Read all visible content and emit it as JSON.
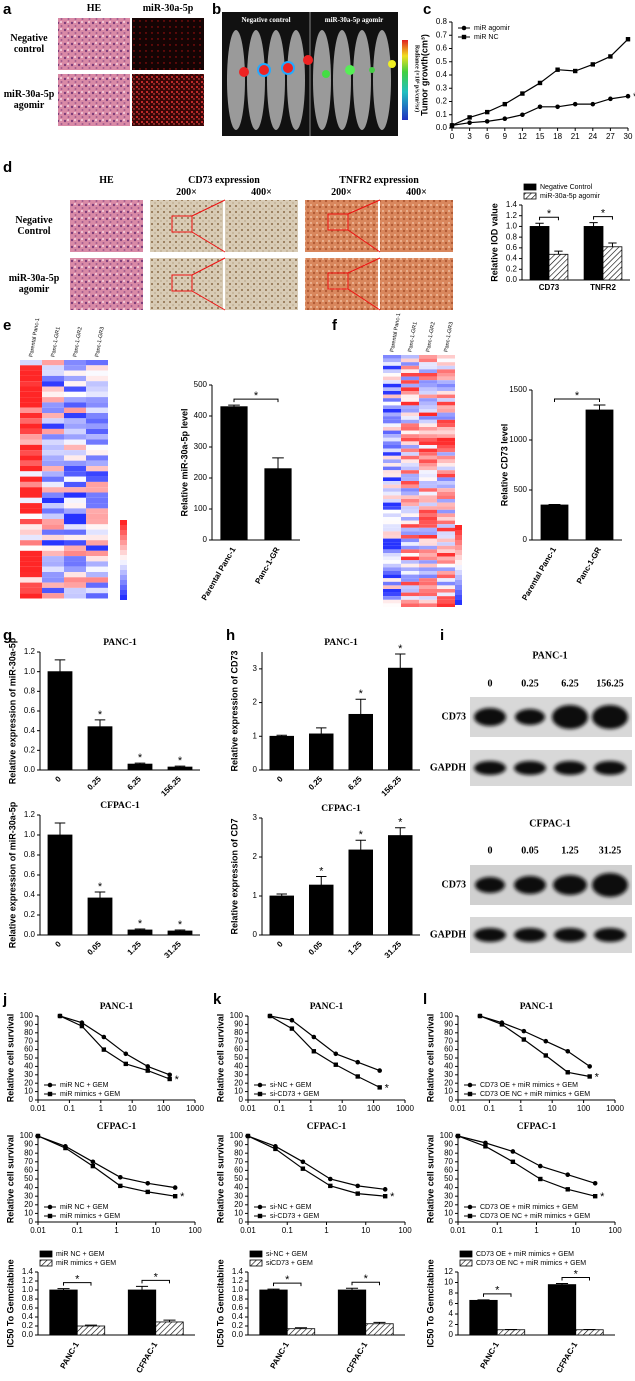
{
  "figure": {
    "panels": [
      "a",
      "b",
      "c",
      "d",
      "e",
      "f",
      "g",
      "h",
      "i",
      "j",
      "k",
      "l"
    ],
    "a": {
      "columns": [
        "HE",
        "miR-30a-5p"
      ],
      "rows": [
        "Negative control",
        "miR-30a-5p agomir"
      ]
    },
    "b": {
      "columns": [
        "Negative control",
        "miR-30a-5p agomir"
      ],
      "colorbar": "Radiance (×10⁶ p/s/cm²/sr)"
    },
    "d": {
      "columns": [
        "HE",
        "CD73 expression",
        "TNFR2 expression"
      ],
      "magnifications": [
        "200×",
        "400×",
        "200×",
        "400×"
      ],
      "rows": [
        "Negative Control",
        "miR-30a-5p agomir"
      ]
    },
    "e": {
      "columns": [
        "Parental Panc-1",
        "Panc-1-GR1",
        "Panc-1-GR2",
        "Panc-1-GR3"
      ]
    },
    "f": {
      "columns": [
        "Parental Panc-1",
        "Panc-1-GR1",
        "Panc-1-GR2",
        "Panc-1-GR3"
      ]
    },
    "i": {
      "blots": [
        {
          "title": "PANC-1",
          "doses": [
            "0",
            "0.25",
            "6.25",
            "156.25"
          ],
          "proteins": [
            "CD73",
            "GAPDH"
          ]
        },
        {
          "title": "CFPAC-1",
          "doses": [
            "0",
            "0.05",
            "1.25",
            "31.25"
          ],
          "proteins": [
            "CD73",
            "GAPDH"
          ]
        }
      ]
    }
  },
  "chart_data": [
    {
      "type": "line",
      "ylabel": "Tumor growth(cm³)",
      "x": [
        0,
        3,
        6,
        9,
        12,
        15,
        18,
        21,
        24,
        27,
        30
      ],
      "xlim": [
        0,
        30
      ],
      "xticks": [
        0,
        3,
        6,
        9,
        12,
        15,
        18,
        21,
        24,
        27,
        30
      ],
      "ylim": [
        0,
        0.8
      ],
      "yticks": [
        {
          "value": 0,
          "label": "0.0"
        },
        0.1,
        0.2,
        0.3,
        0.4,
        0.5,
        0.6,
        0.7,
        0.8
      ],
      "legend": "upper left",
      "significance": "*",
      "series": [
        {
          "name": "miR agomir",
          "color": "#000000",
          "marker": "circle",
          "values": [
            0.02,
            0.04,
            0.05,
            0.07,
            0.1,
            0.16,
            0.16,
            0.18,
            0.18,
            0.22,
            0.24
          ]
        },
        {
          "name": "miR NC",
          "color": "#000000",
          "marker": "square",
          "values": [
            0.02,
            0.08,
            0.12,
            0.18,
            0.26,
            0.34,
            0.44,
            0.43,
            0.48,
            0.54,
            0.67
          ]
        }
      ]
    },
    {
      "type": "bar",
      "ylabel": "Relative IOD value",
      "categories": [
        "CD73",
        "TNFR2"
      ],
      "ylim": [
        0,
        1.4
      ],
      "yticks": [
        {
          "value": 0,
          "label": "0.0"
        },
        0.2,
        0.4,
        0.6,
        0.8,
        {
          "value": 1,
          "label": "1.0"
        },
        1.2,
        1.4
      ],
      "legend": "top",
      "significance": [
        "*",
        "*"
      ],
      "series": [
        {
          "name": "Negative Control",
          "color": "#000000",
          "values": [
            1,
            1
          ],
          "errors": [
            0.06,
            0.07
          ]
        },
        {
          "name": "miR-30a-5p agomir",
          "color": "#000000",
          "fill": "hatch",
          "values": [
            0.48,
            0.62
          ],
          "errors": [
            0.06,
            0.07
          ]
        }
      ]
    },
    {
      "type": "bar",
      "ylabel": "Relative miR-30a-5p level",
      "categories": [
        "Parental Panc-1",
        "Panc-1-GR"
      ],
      "values": [
        430,
        230
      ],
      "errors": [
        5,
        35
      ],
      "color": "#000000",
      "ylim": [
        0,
        500
      ],
      "yticks": [
        0,
        100,
        200,
        300,
        400,
        500
      ],
      "significance": "*"
    },
    {
      "type": "bar",
      "ylabel": "Relative CD73 level",
      "categories": [
        "Parental Panc-1",
        "Panc-1-GR"
      ],
      "values": [
        350,
        1300
      ],
      "errors": [
        5,
        50
      ],
      "color": "#000000",
      "ylim": [
        0,
        1500
      ],
      "yticks": [
        0,
        500,
        1000,
        1500
      ],
      "significance": "*"
    },
    {
      "type": "bar",
      "title": "PANC-1",
      "ylabel": "Relative expression of miR-30a-5p",
      "categories": [
        "0",
        "0.25",
        "6.25",
        "156.25"
      ],
      "values": [
        1,
        0.44,
        0.06,
        0.03
      ],
      "errors": [
        0.12,
        0.07,
        0.01,
        0.01
      ],
      "color": "#000000",
      "ylim": [
        0,
        1.2
      ],
      "yticks": [
        {
          "value": 0,
          "label": "0.0"
        },
        0.2,
        0.4,
        0.6,
        0.8,
        {
          "value": 1,
          "label": "1.0"
        },
        1.2
      ],
      "significance": [
        null,
        "*",
        "*",
        "*"
      ]
    },
    {
      "type": "bar",
      "title": "CFPAC-1",
      "ylabel": "Relative expression of miR-30a-5p",
      "categories": [
        "0",
        "0.05",
        "1.25",
        "31.25"
      ],
      "values": [
        1,
        0.37,
        0.05,
        0.04
      ],
      "errors": [
        0.12,
        0.06,
        0.01,
        0.01
      ],
      "color": "#000000",
      "ylim": [
        0,
        1.2
      ],
      "yticks": [
        {
          "value": 0,
          "label": "0.0"
        },
        0.2,
        0.4,
        0.6,
        0.8,
        {
          "value": 1,
          "label": "1.0"
        },
        1.2
      ],
      "significance": [
        null,
        "*",
        "*",
        "*"
      ]
    },
    {
      "type": "bar",
      "title": "PANC-1",
      "ylabel": "Relative expression of CD73",
      "categories": [
        "0",
        "0.25",
        "6.25",
        "156.25"
      ],
      "values": [
        1,
        1.07,
        1.65,
        3.02
      ],
      "errors": [
        0.03,
        0.18,
        0.45,
        0.42
      ],
      "color": "#000000",
      "ylim": [
        0,
        3.5
      ],
      "yticks": [
        0,
        1,
        2,
        3
      ],
      "significance": [
        null,
        null,
        "*",
        "*"
      ]
    },
    {
      "type": "bar",
      "title": "CFPAC-1",
      "ylabel": "Relative expression of CD7",
      "categories": [
        "0",
        "0.05",
        "1.25",
        "31.25"
      ],
      "values": [
        1,
        1.28,
        2.18,
        2.55
      ],
      "errors": [
        0.05,
        0.22,
        0.25,
        0.2
      ],
      "color": "#000000",
      "ylim": [
        0,
        3
      ],
      "yticks": [
        0,
        1,
        2,
        3
      ],
      "significance": [
        null,
        "*",
        "*",
        "*"
      ]
    },
    {
      "type": "line",
      "title": "PANC-1",
      "ylabel": "Relative cell survival",
      "x": [
        0.05,
        0.25,
        1.25,
        6.25,
        31.25,
        156.25
      ],
      "xlog": true,
      "xlim": [
        0.01,
        1000
      ],
      "xticks": [
        0.01,
        0.1,
        1,
        10,
        100,
        1000
      ],
      "ylim": [
        0,
        100
      ],
      "yticks": [
        0,
        10,
        20,
        30,
        40,
        50,
        60,
        70,
        80,
        90,
        100
      ],
      "legend": "lower left",
      "significance": "*",
      "series": [
        {
          "name": "miR NC + GEM",
          "color": "#000000",
          "marker": "circle",
          "values": [
            100,
            92,
            75,
            55,
            40,
            30
          ]
        },
        {
          "name": "miR mimics + GEM",
          "color": "#000000",
          "marker": "square",
          "values": [
            100,
            88,
            60,
            43,
            35,
            25
          ]
        }
      ]
    },
    {
      "type": "line",
      "title": "CFPAC-1",
      "ylabel": "Relative cell survival",
      "x": [
        0.01,
        0.05,
        0.25,
        1.25,
        6.25,
        31.25
      ],
      "xlog": true,
      "xlim": [
        0.01,
        100
      ],
      "xticks": [
        0.01,
        0.1,
        1,
        10,
        100
      ],
      "ylim": [
        0,
        100
      ],
      "yticks": [
        0,
        10,
        20,
        30,
        40,
        50,
        60,
        70,
        80,
        90,
        100
      ],
      "legend": "lower left",
      "significance": "*",
      "series": [
        {
          "name": "miR NC + GEM",
          "color": "#000000",
          "marker": "circle",
          "values": [
            100,
            88,
            70,
            52,
            45,
            40
          ]
        },
        {
          "name": "miR mimics + GEM",
          "color": "#000000",
          "marker": "square",
          "values": [
            100,
            86,
            65,
            42,
            35,
            30
          ]
        }
      ]
    },
    {
      "type": "bar",
      "ylabel": "IC50 To Gemcitabine",
      "categories": [
        "PANC-1",
        "CFPAC-1"
      ],
      "ylim": [
        0,
        1.4
      ],
      "yticks": [
        {
          "value": 0,
          "label": "0.0"
        },
        0.2,
        0.4,
        0.6,
        0.8,
        {
          "value": 1,
          "label": "1.0"
        },
        1.2,
        1.4
      ],
      "legend": "top",
      "significance": [
        "*",
        "*"
      ],
      "series": [
        {
          "name": "miR NC + GEM",
          "color": "#000000",
          "values": [
            1,
            1
          ],
          "errors": [
            0.03,
            0.08
          ]
        },
        {
          "name": "miR mimics + GEM",
          "color": "#000000",
          "fill": "hatch",
          "values": [
            0.2,
            0.29
          ],
          "errors": [
            0.02,
            0.04
          ]
        }
      ]
    },
    {
      "type": "line",
      "title": "PANC-1",
      "ylabel": "Relative cell survival",
      "x": [
        0.05,
        0.25,
        1.25,
        6.25,
        31.25,
        156.25
      ],
      "xlog": true,
      "xlim": [
        0.01,
        1000
      ],
      "xticks": [
        0.01,
        0.1,
        1,
        10,
        100,
        1000
      ],
      "ylim": [
        0,
        100
      ],
      "yticks": [
        0,
        10,
        20,
        30,
        40,
        50,
        60,
        70,
        80,
        90,
        100
      ],
      "legend": "lower left",
      "significance": "*",
      "series": [
        {
          "name": "si-NC + GEM",
          "color": "#000000",
          "marker": "circle",
          "values": [
            100,
            95,
            75,
            55,
            45,
            35
          ]
        },
        {
          "name": "si-CD73 + GEM",
          "color": "#000000",
          "marker": "square",
          "values": [
            100,
            85,
            58,
            42,
            28,
            15
          ]
        }
      ]
    },
    {
      "type": "line",
      "title": "CFPAC-1",
      "ylabel": "Relative cell survival",
      "x": [
        0.01,
        0.05,
        0.25,
        1.25,
        6.25,
        31.25
      ],
      "xlog": true,
      "xlim": [
        0.01,
        100
      ],
      "xticks": [
        0.01,
        0.1,
        1,
        10,
        100
      ],
      "ylim": [
        0,
        100
      ],
      "yticks": [
        0,
        10,
        20,
        30,
        40,
        50,
        60,
        70,
        80,
        90,
        100
      ],
      "legend": "lower left",
      "significance": "*",
      "series": [
        {
          "name": "si-NC + GEM",
          "color": "#000000",
          "marker": "circle",
          "values": [
            100,
            88,
            70,
            50,
            42,
            38
          ]
        },
        {
          "name": "si-CD73 + GEM",
          "color": "#000000",
          "marker": "square",
          "values": [
            100,
            85,
            62,
            42,
            33,
            30
          ]
        }
      ]
    },
    {
      "type": "bar",
      "ylabel": "IC50 To Gemcitabine",
      "categories": [
        "PANC-1",
        "CFPAC-1"
      ],
      "ylim": [
        0,
        1.4
      ],
      "yticks": [
        {
          "value": 0,
          "label": "0.0"
        },
        0.2,
        0.4,
        0.6,
        0.8,
        {
          "value": 1,
          "label": "1.0"
        },
        1.2,
        1.4
      ],
      "legend": "top",
      "significance": [
        "*",
        "*"
      ],
      "series": [
        {
          "name": "si-NC + GEM",
          "color": "#000000",
          "values": [
            1,
            1
          ],
          "errors": [
            0.02,
            0.04
          ]
        },
        {
          "name": "siCD73 + GEM",
          "color": "#000000",
          "fill": "hatch",
          "values": [
            0.14,
            0.25
          ],
          "errors": [
            0.02,
            0.03
          ]
        }
      ]
    },
    {
      "type": "line",
      "title": "PANC-1",
      "ylabel": "Relative cell survival",
      "x": [
        0.05,
        0.25,
        1.25,
        6.25,
        31.25,
        156.25
      ],
      "xlog": true,
      "xlim": [
        0.01,
        1000
      ],
      "xticks": [
        0.01,
        0.1,
        1,
        10,
        100,
        1000
      ],
      "ylim": [
        0,
        100
      ],
      "yticks": [
        0,
        10,
        20,
        30,
        40,
        50,
        60,
        70,
        80,
        90,
        100
      ],
      "legend": "lower left",
      "significance": "*",
      "series": [
        {
          "name": "CD73 OE + miR mimics + GEM",
          "color": "#000000",
          "marker": "circle",
          "values": [
            100,
            92,
            82,
            70,
            58,
            40
          ]
        },
        {
          "name": "CD73 OE NC + miR mimics + GEM",
          "color": "#000000",
          "marker": "square",
          "values": [
            100,
            90,
            72,
            53,
            33,
            28
          ]
        }
      ]
    },
    {
      "type": "line",
      "title": "CFPAC-1",
      "ylabel": "Relative cell survival",
      "x": [
        0.01,
        0.05,
        0.25,
        1.25,
        6.25,
        31.25
      ],
      "xlog": true,
      "xlim": [
        0.01,
        100
      ],
      "xticks": [
        0.01,
        0.1,
        1,
        10,
        100
      ],
      "ylim": [
        0,
        100
      ],
      "yticks": [
        0,
        10,
        20,
        30,
        40,
        50,
        60,
        70,
        80,
        90,
        100
      ],
      "legend": "lower left",
      "significance": "*",
      "series": [
        {
          "name": "CD73 OE + miR mimics + GEM",
          "color": "#000000",
          "marker": "circle",
          "values": [
            100,
            92,
            82,
            65,
            55,
            45
          ]
        },
        {
          "name": "CD73 OE NC + miR mimics + GEM",
          "color": "#000000",
          "marker": "square",
          "values": [
            100,
            88,
            70,
            50,
            38,
            30
          ]
        }
      ]
    },
    {
      "type": "bar",
      "ylabel": "IC50 To Gemcitabine",
      "categories": [
        "PANC-1",
        "CFPAC-1"
      ],
      "ylim": [
        0,
        12
      ],
      "yticks": [
        0,
        2,
        4,
        6,
        8,
        10,
        12
      ],
      "legend": "top",
      "significance": [
        "*",
        "*"
      ],
      "series": [
        {
          "name": "CD73 OE + miR mimics + GEM",
          "color": "#000000",
          "values": [
            6.6,
            9.6
          ],
          "errors": [
            0.1,
            0.2
          ]
        },
        {
          "name": "CD73 OE NC + miR mimics + GEM",
          "color": "#000000",
          "fill": "hatch",
          "values": [
            1,
            1
          ],
          "errors": [
            0.05,
            0.05
          ]
        }
      ]
    }
  ]
}
